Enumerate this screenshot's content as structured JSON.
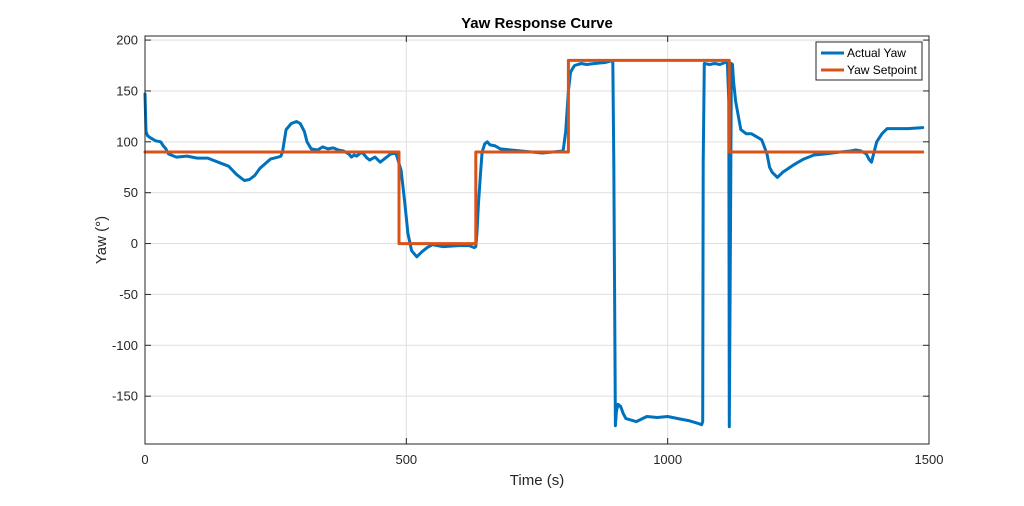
{
  "chart_data": {
    "type": "line",
    "title": "Yaw Response Curve",
    "xlabel": "Time (s)",
    "ylabel": "Yaw (°)",
    "xlim": [
      0,
      1500
    ],
    "ylim": [
      -197,
      204
    ],
    "xticks": [
      0,
      500,
      1000,
      1500
    ],
    "yticks": [
      200,
      150,
      100,
      50,
      0,
      -50,
      -100,
      -150
    ],
    "grid": true,
    "legend_position": "top-right",
    "colors": {
      "actual": "#0072BD",
      "setpoint": "#D95319"
    },
    "series": [
      {
        "name": "Actual Yaw",
        "x": [
          0,
          2,
          5,
          10,
          20,
          30,
          35,
          40,
          45,
          50,
          60,
          80,
          100,
          120,
          140,
          160,
          175,
          190,
          200,
          210,
          220,
          240,
          255,
          260,
          263,
          267,
          270,
          280,
          290,
          297,
          305,
          310,
          318,
          330,
          340,
          350,
          360,
          370,
          380,
          390,
          395,
          400,
          405,
          415,
          425,
          430,
          440,
          450,
          460,
          470,
          480,
          490,
          497,
          503,
          510,
          520,
          530,
          540,
          550,
          570,
          600,
          620,
          630,
          633,
          635,
          638,
          642,
          645,
          650,
          655,
          660,
          670,
          680,
          700,
          720,
          740,
          760,
          780,
          800,
          805,
          810,
          814,
          818,
          822,
          828,
          835,
          845,
          860,
          880,
          895,
          897,
          900,
          902,
          905,
          910,
          915,
          920,
          940,
          960,
          980,
          1000,
          1020,
          1040,
          1060,
          1065,
          1067,
          1068,
          1070,
          1080,
          1090,
          1100,
          1110,
          1114,
          1117,
          1118,
          1120,
          1122,
          1124,
          1126,
          1130,
          1140,
          1150,
          1160,
          1170,
          1180,
          1185,
          1190,
          1195,
          1200,
          1210,
          1220,
          1240,
          1260,
          1280,
          1300,
          1330,
          1350,
          1360,
          1370,
          1380,
          1385,
          1390,
          1395,
          1400,
          1410,
          1420,
          1440,
          1460,
          1488
        ],
        "y": [
          147,
          110,
          106,
          104,
          101,
          100,
          96,
          93,
          88,
          87,
          85,
          86,
          84,
          84,
          80,
          76,
          68,
          62,
          63,
          67,
          74,
          83,
          85,
          86,
          90,
          103,
          112,
          118,
          120,
          118,
          110,
          100,
          93,
          92,
          95,
          93,
          94,
          92,
          91,
          88,
          85,
          87,
          86,
          90,
          84,
          82,
          85,
          80,
          84,
          88,
          89,
          72,
          40,
          10,
          -7,
          -13,
          -8,
          -4,
          -1,
          -3,
          -2,
          -2,
          -4,
          -3,
          10,
          40,
          70,
          90,
          98,
          100,
          97,
          96,
          93,
          92,
          91,
          90,
          89,
          90,
          91,
          110,
          150,
          168,
          172,
          175,
          176,
          177,
          176,
          177,
          178,
          180,
          80,
          -179,
          -165,
          -158,
          -160,
          -167,
          -172,
          -175,
          -170,
          -171,
          -170,
          -172,
          -174,
          -177,
          -178,
          -175,
          80,
          177,
          176,
          177,
          176,
          178,
          179,
          140,
          -180,
          0,
          177,
          176,
          160,
          140,
          112,
          108,
          108,
          105,
          102,
          95,
          88,
          75,
          70,
          65,
          70,
          77,
          83,
          87,
          88,
          90,
          91,
          92,
          91,
          88,
          83,
          80,
          90,
          100,
          108,
          113,
          113,
          113,
          114
        ]
      },
      {
        "name": "Yaw Setpoint",
        "x": [
          0,
          486,
          486,
          633,
          633,
          810,
          810,
          1118,
          1118,
          1488
        ],
        "y": [
          90,
          90,
          0,
          0,
          90,
          90,
          180,
          180,
          90,
          90
        ]
      }
    ]
  }
}
